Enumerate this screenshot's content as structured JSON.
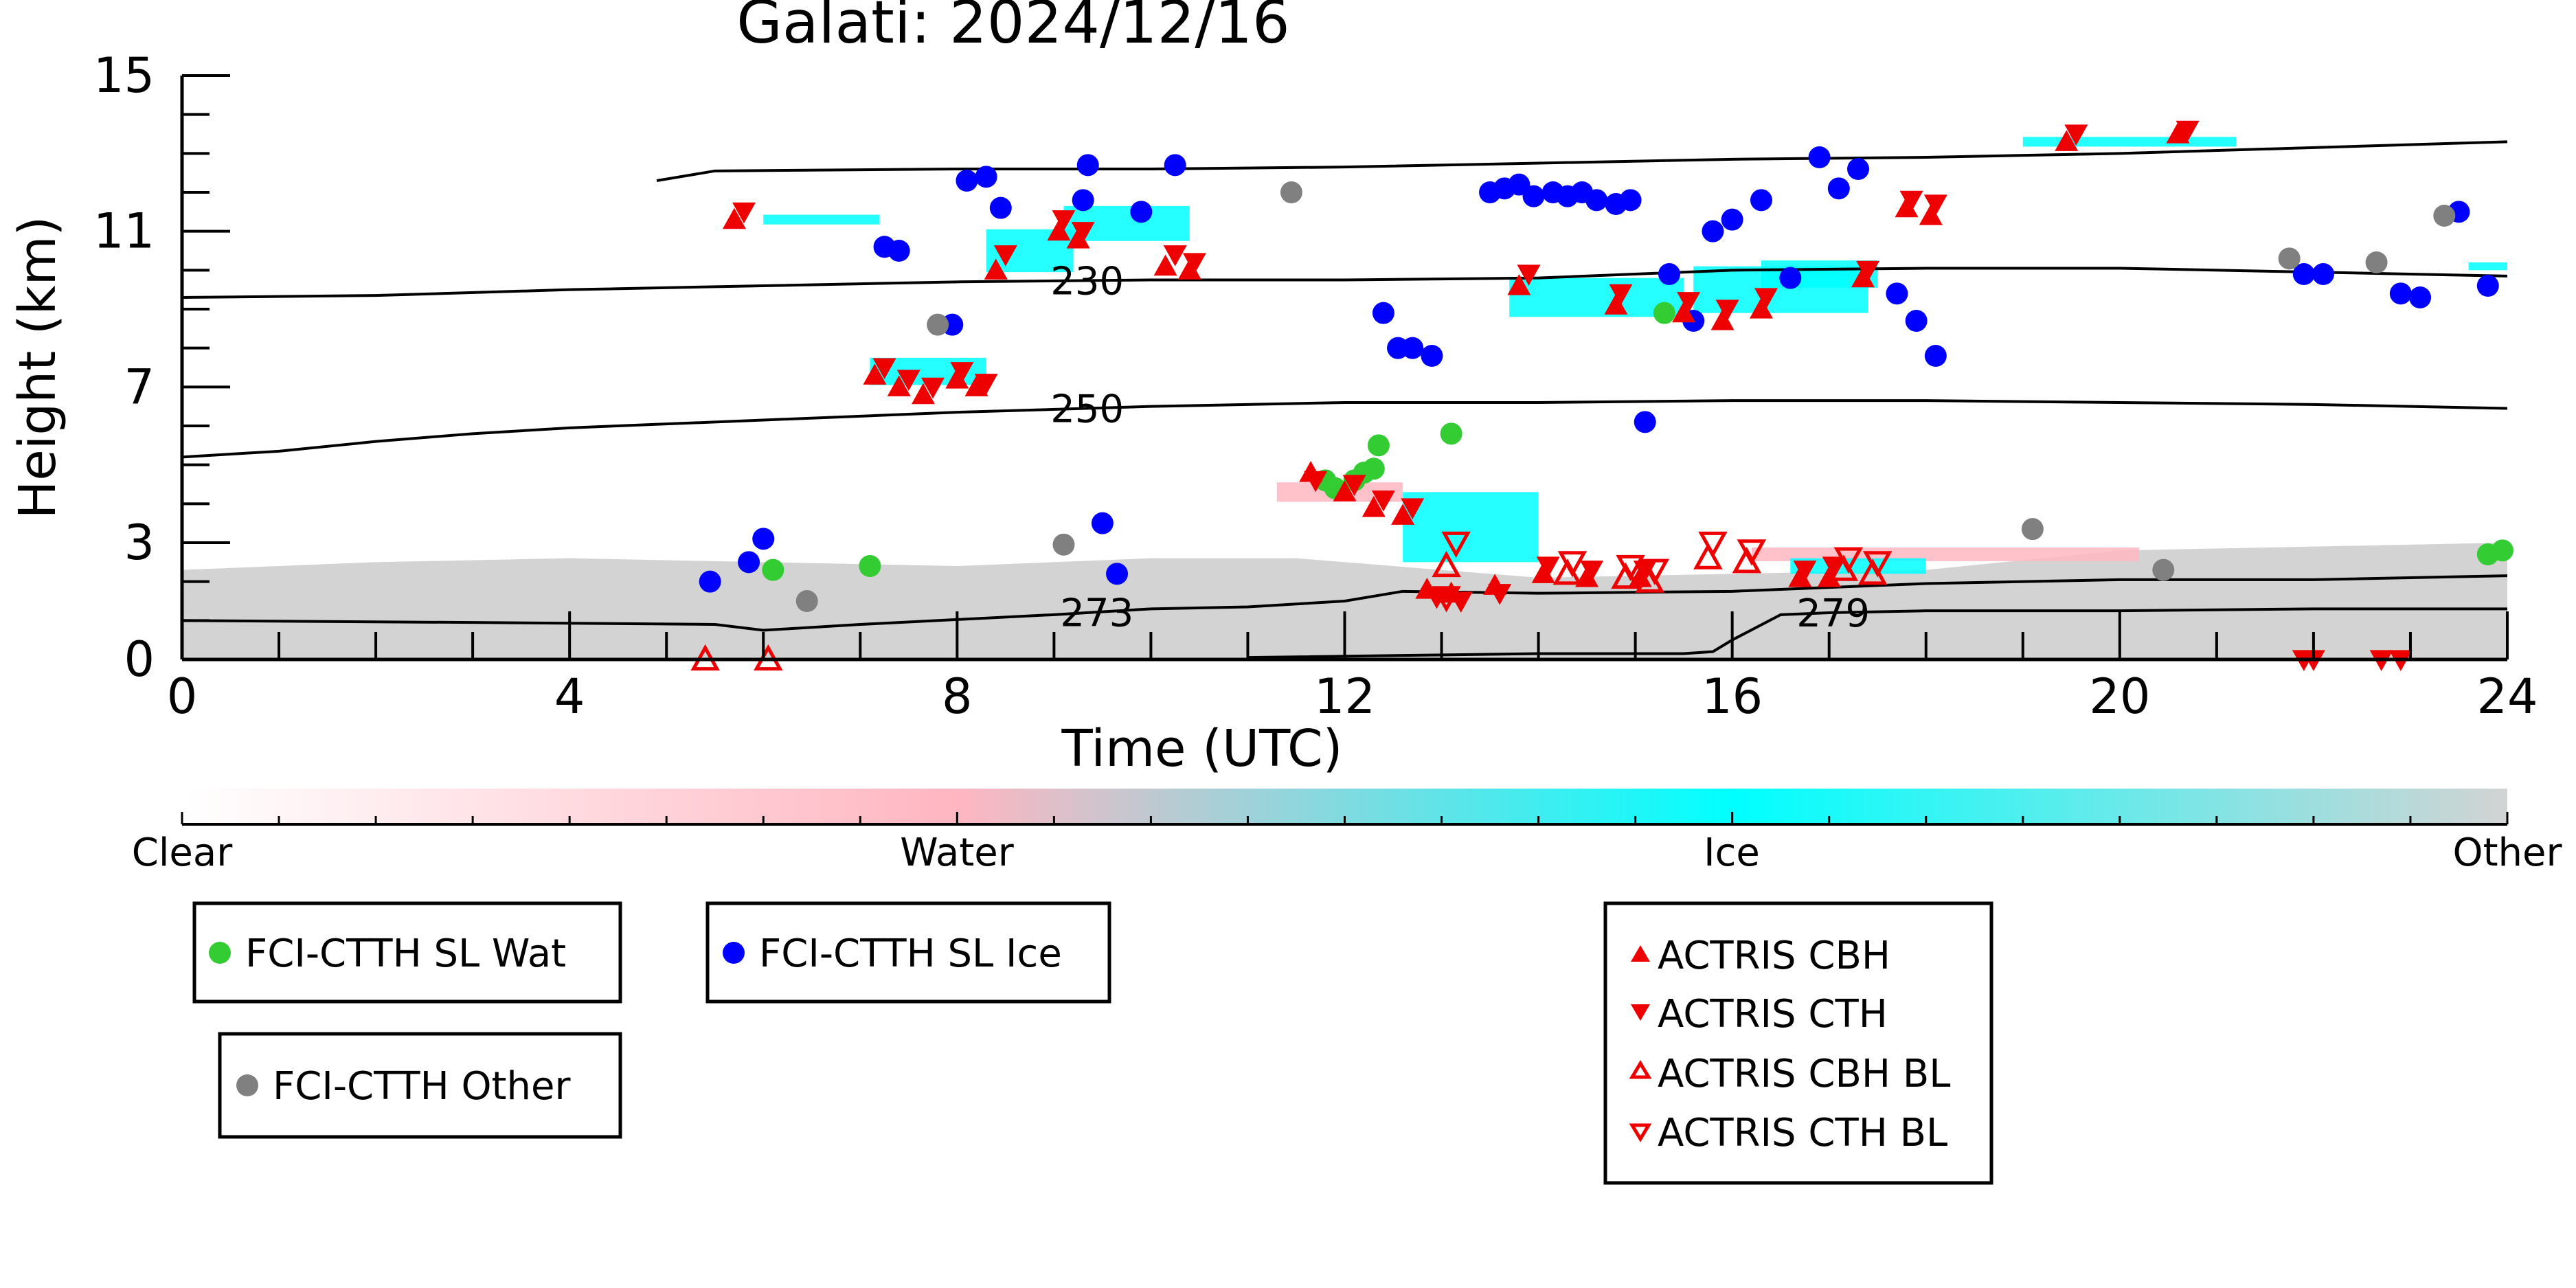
{
  "chart_data": {
    "type": "scatter",
    "title": "Galati: 2024/12/16",
    "xlabel": "Time (UTC)",
    "ylabel": "Height (km)",
    "xlim": [
      0,
      24
    ],
    "ylim": [
      0,
      15
    ],
    "x_ticks": [
      "0",
      "4",
      "8",
      "12",
      "16",
      "20",
      "24"
    ],
    "x_tick_values": [
      0,
      4,
      8,
      12,
      16,
      20,
      24
    ],
    "y_ticks": [
      "0",
      "3",
      "7",
      "11",
      "15"
    ],
    "y_tick_values": [
      0,
      3,
      7,
      11,
      15
    ],
    "colorbar": {
      "labels": [
        "Clear",
        "Water",
        "Ice",
        "Other"
      ],
      "colors": {
        "clear": "#ffffff",
        "water": "#ffb6c1",
        "ice": "#00ffff",
        "other": "#d3d3d3"
      }
    },
    "contours": [
      {
        "label": "230",
        "label_x": 9.3,
        "points": [
          [
            0,
            9.3
          ],
          [
            2,
            9.35
          ],
          [
            4,
            9.5
          ],
          [
            6,
            9.6
          ],
          [
            8,
            9.7
          ],
          [
            10,
            9.75
          ],
          [
            12,
            9.75
          ],
          [
            14,
            9.8
          ],
          [
            16,
            10.0
          ],
          [
            18,
            10.05
          ],
          [
            20,
            10.05
          ],
          [
            22,
            9.95
          ],
          [
            24,
            9.85
          ]
        ]
      },
      {
        "label": "250",
        "label_x": 9.3,
        "points": [
          [
            0,
            5.2
          ],
          [
            1,
            5.35
          ],
          [
            2,
            5.6
          ],
          [
            3,
            5.8
          ],
          [
            4,
            5.95
          ],
          [
            6,
            6.15
          ],
          [
            8,
            6.35
          ],
          [
            10,
            6.5
          ],
          [
            12,
            6.6
          ],
          [
            14,
            6.6
          ],
          [
            16,
            6.65
          ],
          [
            18,
            6.65
          ],
          [
            20,
            6.6
          ],
          [
            22,
            6.55
          ],
          [
            24,
            6.45
          ]
        ]
      },
      {
        "label": "273",
        "label_x": 9.4,
        "points": [
          [
            0,
            1.0
          ],
          [
            3,
            0.95
          ],
          [
            5.5,
            0.9
          ],
          [
            6,
            0.75
          ],
          [
            7,
            0.9
          ],
          [
            9,
            1.15
          ],
          [
            10,
            1.3
          ],
          [
            11,
            1.35
          ],
          [
            12,
            1.5
          ],
          [
            12.6,
            1.75
          ],
          [
            14,
            1.7
          ],
          [
            16,
            1.75
          ],
          [
            17,
            1.85
          ],
          [
            18,
            1.95
          ],
          [
            20,
            2.05
          ],
          [
            22,
            2.05
          ],
          [
            24,
            2.15
          ]
        ]
      },
      {
        "label": "279",
        "label_x": 17.0,
        "points": [
          [
            11,
            0.05
          ],
          [
            14,
            0.15
          ],
          [
            15.5,
            0.15
          ],
          [
            15.8,
            0.2
          ],
          [
            16,
            0.5
          ],
          [
            16.5,
            1.15
          ],
          [
            17,
            1.2
          ],
          [
            18,
            1.25
          ],
          [
            20,
            1.25
          ],
          [
            22,
            1.3
          ],
          [
            24,
            1.3
          ]
        ]
      },
      {
        "label": "",
        "label_x": null,
        "points": [
          [
            4.9,
            12.3
          ],
          [
            5.5,
            12.55
          ],
          [
            8,
            12.6
          ],
          [
            10,
            12.6
          ],
          [
            12,
            12.65
          ],
          [
            14,
            12.75
          ],
          [
            16,
            12.85
          ],
          [
            18,
            12.9
          ],
          [
            20,
            13.0
          ],
          [
            22,
            13.15
          ],
          [
            24,
            13.3
          ]
        ]
      }
    ],
    "series": [
      {
        "name": "FCI-CTTH SL Wat",
        "color": "#33cc33",
        "marker": "circle",
        "x": [
          6.1,
          7.1,
          11.8,
          11.9,
          12.1,
          12.2,
          12.3,
          12.35,
          13.1,
          15.3,
          23.8,
          23.95
        ],
        "y": [
          2.3,
          2.4,
          4.6,
          4.4,
          4.6,
          4.8,
          4.9,
          5.5,
          5.8,
          8.9,
          2.7,
          2.8
        ]
      },
      {
        "name": "FCI-CTTH SL Ice",
        "color": "#0000ff",
        "marker": "circle",
        "x": [
          5.45,
          5.85,
          6.0,
          7.25,
          7.4,
          7.95,
          8.1,
          8.3,
          8.45,
          9.3,
          9.35,
          9.5,
          9.65,
          9.9,
          10.25,
          12.4,
          12.55,
          12.7,
          12.9,
          13.5,
          13.65,
          13.8,
          13.95,
          14.15,
          14.3,
          14.45,
          14.6,
          14.8,
          14.95,
          15.1,
          15.35,
          15.6,
          15.8,
          16.0,
          16.3,
          16.6,
          16.9,
          17.1,
          17.3,
          17.7,
          17.9,
          18.1,
          21.9,
          22.1,
          22.9,
          23.1,
          23.5,
          23.8
        ],
        "y": [
          2.0,
          2.5,
          3.1,
          10.6,
          10.5,
          8.6,
          12.3,
          12.4,
          11.6,
          11.8,
          12.7,
          3.5,
          2.2,
          11.5,
          12.7,
          8.9,
          8.0,
          8.0,
          7.8,
          12.0,
          12.1,
          12.2,
          11.9,
          12.0,
          11.9,
          12.0,
          11.8,
          11.7,
          11.8,
          6.1,
          9.9,
          8.7,
          11.0,
          11.3,
          11.8,
          9.8,
          12.9,
          12.1,
          12.6,
          9.4,
          8.7,
          7.8,
          9.9,
          9.9,
          9.4,
          9.3,
          11.5,
          9.6
        ]
      },
      {
        "name": "FCI-CTTH Other",
        "color": "#808080",
        "marker": "circle",
        "x": [
          6.45,
          7.8,
          9.1,
          11.45,
          19.1,
          20.45,
          21.75,
          22.65,
          23.35
        ],
        "y": [
          1.5,
          8.6,
          2.95,
          12.0,
          3.35,
          2.3,
          10.3,
          10.2,
          11.4
        ]
      },
      {
        "name": "ACTRIS CBH",
        "color": "#ee0000",
        "marker": "triangle-up",
        "filled": true,
        "x": [
          5.7,
          7.15,
          7.4,
          7.65,
          8.0,
          8.2,
          8.4,
          9.05,
          9.25,
          10.15,
          10.4,
          11.65,
          12.0,
          12.3,
          12.6,
          12.85,
          13.1,
          13.55,
          13.8,
          14.05,
          14.5,
          14.8,
          15.05,
          15.5,
          15.9,
          16.3,
          16.7,
          17.0,
          17.35,
          17.8,
          18.05,
          19.45,
          20.6
        ],
        "y": [
          11.3,
          7.3,
          7.0,
          6.8,
          7.2,
          7.0,
          10.0,
          11.0,
          10.8,
          10.1,
          10.0,
          4.8,
          4.3,
          3.9,
          3.7,
          1.8,
          1.7,
          1.9,
          9.6,
          2.2,
          2.1,
          9.1,
          2.1,
          8.9,
          8.7,
          9.0,
          2.1,
          2.1,
          9.8,
          11.6,
          11.4,
          13.3,
          13.5
        ]
      },
      {
        "name": "ACTRIS CTH",
        "color": "#ee0000",
        "marker": "triangle-down",
        "filled": true,
        "x": [
          5.8,
          7.25,
          7.5,
          7.75,
          8.05,
          8.3,
          8.5,
          9.1,
          9.3,
          10.25,
          10.45,
          11.7,
          12.1,
          12.4,
          12.7,
          12.95,
          13.2,
          13.6,
          13.9,
          14.1,
          14.55,
          14.85,
          15.1,
          15.55,
          15.95,
          16.35,
          16.75,
          17.05,
          17.4,
          17.85,
          18.1,
          19.55,
          20.7,
          21.9,
          22.0,
          22.7,
          22.9
        ],
        "y": [
          11.5,
          7.5,
          7.2,
          7.0,
          7.4,
          7.1,
          10.4,
          11.3,
          11.0,
          10.4,
          10.2,
          4.6,
          4.5,
          4.1,
          3.9,
          1.6,
          1.5,
          1.7,
          9.9,
          2.4,
          2.3,
          9.4,
          2.3,
          9.2,
          9.0,
          9.3,
          2.3,
          2.4,
          10.0,
          11.8,
          11.7,
          13.5,
          13.6,
          0.0,
          0.0,
          0.0,
          0.0
        ]
      },
      {
        "name": "ACTRIS CBH BL",
        "color": "#ee0000",
        "marker": "triangle-up",
        "filled": false,
        "x": [
          5.4,
          6.05,
          13.05,
          14.3,
          14.9,
          15.15,
          15.75,
          16.15,
          17.15,
          17.45
        ],
        "y": [
          0.0,
          0.0,
          2.4,
          2.2,
          2.1,
          2.0,
          2.6,
          2.5,
          2.3,
          2.2
        ]
      },
      {
        "name": "ACTRIS CTH BL",
        "color": "#ee0000",
        "marker": "triangle-down",
        "filled": false,
        "x": [
          13.05,
          13.15,
          14.35,
          14.95,
          15.2,
          15.8,
          16.2,
          17.2,
          17.5
        ],
        "y": [
          1.6,
          3.0,
          2.5,
          2.4,
          2.3,
          3.0,
          2.8,
          2.6,
          2.5
        ]
      }
    ],
    "legend": [
      "FCI-CTTH SL Wat",
      "FCI-CTTH SL Ice",
      "FCI-CTTH Other",
      "ACTRIS CBH",
      "ACTRIS CTH",
      "ACTRIS CBH BL",
      "ACTRIS CTH BL"
    ]
  }
}
